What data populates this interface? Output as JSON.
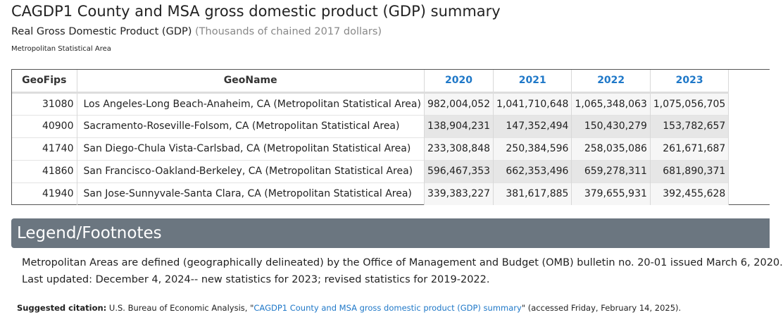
{
  "page": {
    "title": "CAGDP1 County and MSA gross domestic product (GDP) summary",
    "subtitle": "Real Gross Domestic Product (GDP)",
    "units": "(Thousands of chained 2017 dollars)",
    "area_type": "Metropolitan Statistical Area"
  },
  "table": {
    "headers": [
      "GeoFips",
      "GeoName",
      "2020",
      "2021",
      "2022",
      "2023"
    ],
    "rows": [
      {
        "fips": "31080",
        "name": "Los Angeles-Long Beach-Anaheim, CA (Metropolitan Statistical Area)",
        "v2020": "982,004,052",
        "v2021": "1,041,710,648",
        "v2022": "1,065,348,063",
        "v2023": "1,075,056,705"
      },
      {
        "fips": "40900",
        "name": "Sacramento-Roseville-Folsom, CA (Metropolitan Statistical Area)",
        "v2020": "138,904,231",
        "v2021": "147,352,494",
        "v2022": "150,430,279",
        "v2023": "153,782,657"
      },
      {
        "fips": "41740",
        "name": "San Diego-Chula Vista-Carlsbad, CA (Metropolitan Statistical Area)",
        "v2020": "233,308,848",
        "v2021": "250,384,596",
        "v2022": "258,035,086",
        "v2023": "261,671,687"
      },
      {
        "fips": "41860",
        "name": "San Francisco-Oakland-Berkeley, CA (Metropolitan Statistical Area)",
        "v2020": "596,467,353",
        "v2021": "662,353,496",
        "v2022": "659,278,311",
        "v2023": "681,890,371"
      },
      {
        "fips": "41940",
        "name": "San Jose-Sunnyvale-Santa Clara, CA (Metropolitan Statistical Area)",
        "v2020": "339,383,227",
        "v2021": "381,617,885",
        "v2022": "379,655,931",
        "v2023": "392,455,628"
      }
    ]
  },
  "legend": {
    "heading": "Legend/Footnotes",
    "footnote_1": "Metropolitan Areas are defined (geographically delineated) by the Office of Management and Budget (OMB) bulletin no. 20-01 issued March 6, 2020.",
    "footnote_2": "Last updated: December 4, 2024-- new statistics for 2023; revised statistics for 2019-2022."
  },
  "citation": {
    "label": "Suggested citation:",
    "prefix": "U.S. Bureau of Economic Analysis, \"",
    "link_text": "CAGDP1 County and MSA gross domestic product (GDP) summary",
    "suffix": "\" (accessed Friday, February 14, 2025)."
  },
  "colors": {
    "year_header": "#1f78c8",
    "legend_bar": "#6b7680",
    "link": "#1f78c8"
  }
}
